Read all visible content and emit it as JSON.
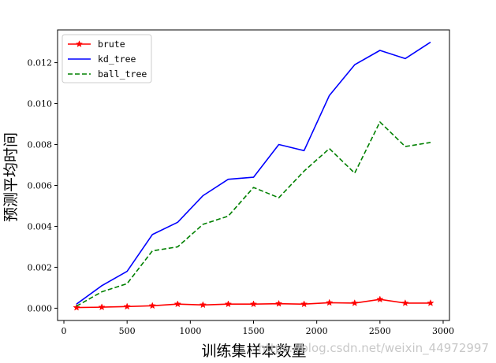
{
  "chart_data": {
    "type": "line",
    "title": "",
    "xlabel": "训练集样本数量",
    "ylabel": "预测平均时间",
    "xlim": [
      -50,
      3050
    ],
    "ylim": [
      -0.0006,
      0.0136
    ],
    "x": [
      100,
      300,
      500,
      700,
      900,
      1100,
      1300,
      1500,
      1700,
      1900,
      2100,
      2300,
      2500,
      2700,
      2900
    ],
    "xticks": [
      0,
      500,
      1000,
      1500,
      2000,
      2500,
      3000
    ],
    "xtick_labels": [
      "0",
      "500",
      "1000",
      "1500",
      "2000",
      "2500",
      "3000"
    ],
    "yticks": [
      0.0,
      0.002,
      0.004,
      0.006,
      0.008,
      0.01,
      0.012
    ],
    "ytick_labels": [
      "0.000",
      "0.002",
      "0.004",
      "0.006",
      "0.008",
      "0.010",
      "0.012"
    ],
    "grid": false,
    "legend_position": "top-left",
    "series": [
      {
        "name": "brute",
        "color": "#ff0000",
        "line_style": "solid",
        "marker": "star",
        "values": [
          3e-05,
          5e-05,
          8e-05,
          0.00012,
          0.0002,
          0.00016,
          0.0002,
          0.0002,
          0.00022,
          0.0002,
          0.00027,
          0.00025,
          0.00043,
          0.00025,
          0.00025
        ]
      },
      {
        "name": "kd_tree",
        "color": "#0000ff",
        "line_style": "solid",
        "marker": "none",
        "values": [
          0.0002,
          0.0011,
          0.0018,
          0.0036,
          0.0042,
          0.0055,
          0.0063,
          0.0064,
          0.008,
          0.0077,
          0.0104,
          0.0119,
          0.0126,
          0.0122,
          0.013
        ]
      },
      {
        "name": "ball_tree",
        "color": "#008000",
        "line_style": "dashed",
        "marker": "none",
        "values": [
          0.0001,
          0.0008,
          0.0012,
          0.0028,
          0.003,
          0.0041,
          0.0045,
          0.0059,
          0.0054,
          0.0067,
          0.0078,
          0.0066,
          0.0091,
          0.0079,
          0.0081
        ]
      }
    ]
  },
  "watermark": {
    "text": "https://blog.csdn.net/weixin_44972997"
  }
}
